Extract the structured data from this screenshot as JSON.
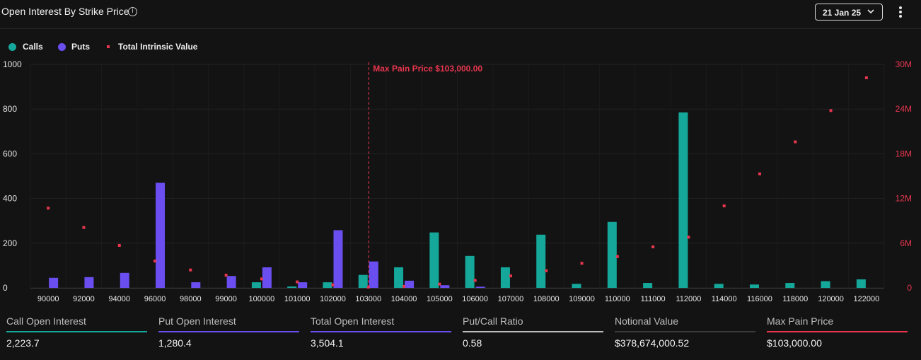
{
  "header": {
    "title": "Open Interest By Strike Price",
    "date_label": "21 Jan 25"
  },
  "icons": {
    "info": "info-icon",
    "date_chevron": "chevron-down-icon",
    "menu": "more-vertical-icon"
  },
  "legend": [
    {
      "label": "Calls",
      "color": "#14a79a",
      "shape": "circle"
    },
    {
      "label": "Puts",
      "color": "#6b4ef0",
      "shape": "circle"
    },
    {
      "label": "Total Intrinsic Value",
      "color": "#e8364f",
      "shape": "square"
    }
  ],
  "chart_data": {
    "type": "bar",
    "categories": [
      "90000",
      "92000",
      "94000",
      "96000",
      "98000",
      "99000",
      "100000",
      "101000",
      "102000",
      "103000",
      "104000",
      "105000",
      "106000",
      "107000",
      "108000",
      "109000",
      "110000",
      "111000",
      "112000",
      "114000",
      "116000",
      "118000",
      "120000",
      "122000"
    ],
    "series": [
      {
        "name": "Calls",
        "color": "#14a79a",
        "values": [
          0,
          0,
          0,
          0,
          0,
          0,
          25,
          6,
          25,
          58,
          92,
          248,
          143,
          92,
          238,
          18,
          295,
          22,
          785,
          18,
          15,
          22,
          30,
          38
        ]
      },
      {
        "name": "Puts",
        "color": "#6b4ef0",
        "values": [
          45,
          48,
          67,
          470,
          25,
          53,
          92,
          25,
          258,
          118,
          32,
          12,
          5,
          0,
          0,
          0,
          0,
          0,
          0,
          0,
          0,
          0,
          0,
          0
        ]
      },
      {
        "name": "Total Intrinsic Value",
        "color": "#e8364f",
        "axis": "right",
        "values": [
          10700000,
          8100000,
          5700000,
          3600000,
          2400000,
          1700000,
          1200000,
          800000,
          400000,
          100000,
          200000,
          500000,
          1000000,
          1600000,
          2300000,
          3300000,
          4200000,
          5500000,
          6800000,
          11000000,
          15300000,
          19600000,
          23800000,
          28200000
        ]
      }
    ],
    "yleft": {
      "range": [
        0,
        1000
      ],
      "ticks": [
        "0",
        "200",
        "400",
        "600",
        "800",
        "1000"
      ]
    },
    "yright": {
      "range": [
        0,
        30000000
      ],
      "ticks": [
        "0",
        "6M",
        "12M",
        "18M",
        "24M",
        "30M"
      ]
    },
    "max_pain": {
      "category": "103000",
      "label": "Max Pain Price $103,000.00"
    },
    "grid": true
  },
  "stats": [
    {
      "label": "Call Open Interest",
      "value": "2,223.7",
      "color": "#14a79a"
    },
    {
      "label": "Put Open Interest",
      "value": "1,280.4",
      "color": "#6b4ef0"
    },
    {
      "label": "Total Open Interest",
      "value": "3,504.1",
      "color": "#6b4ef0"
    },
    {
      "label": "Put/Call Ratio",
      "value": "0.58",
      "color": "#bdbdbd"
    },
    {
      "label": "Notional Value",
      "value": "$378,674,000.52",
      "color": "#3a3a3a"
    },
    {
      "label": "Max Pain Price",
      "value": "$103,000.00",
      "color": "#e8364f"
    }
  ]
}
